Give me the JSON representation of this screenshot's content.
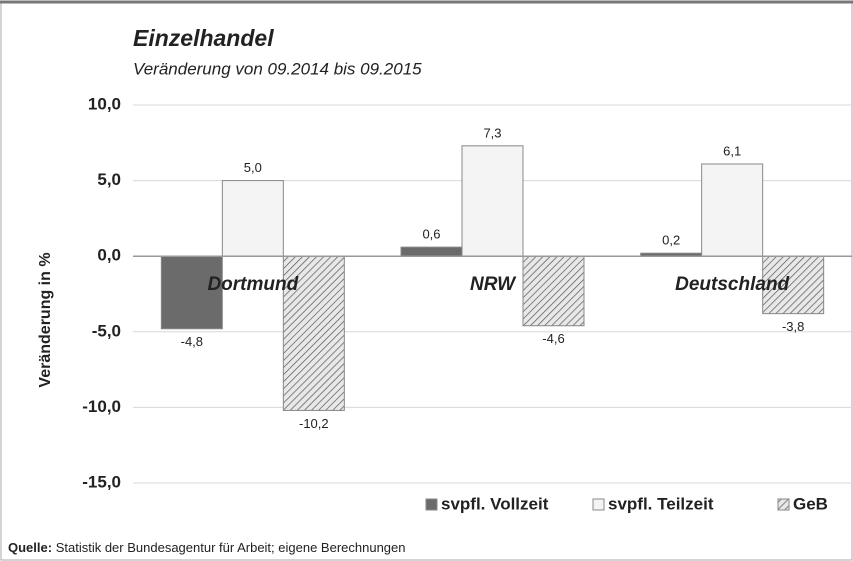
{
  "chart_data": {
    "type": "bar",
    "title": "Einzelhandel",
    "subtitle": "Veränderung von 09.2014 bis 09.2015",
    "y_label": "Veränderung in %",
    "source_label": "Quelle:",
    "source": "Statistik der Bundesagentur für Arbeit; eigene Berechnungen",
    "categories": [
      "Dortmund",
      "NRW",
      "Deutschland"
    ],
    "series": [
      {
        "name": "svpfl. Vollzeit",
        "color": "#6b6b6b",
        "values": [
          -4.8,
          0.6,
          0.2
        ],
        "value_labels": [
          "-4,8",
          "0,6",
          "0,2"
        ]
      },
      {
        "name": "svpfl. Teilzeit",
        "color": "#f4f4f4",
        "values": [
          5.0,
          7.3,
          6.1
        ],
        "value_labels": [
          "5,0",
          "7,3",
          "6,1"
        ]
      },
      {
        "name": "GeB",
        "color": "#e2e2e2",
        "hatch": true,
        "values": [
          -10.2,
          -4.6,
          -3.8
        ],
        "value_labels": [
          "-10,2",
          "-4,6",
          "-3,8"
        ]
      }
    ],
    "ylim": [
      -15,
      10
    ],
    "yticks": [
      {
        "value": 10,
        "label": "10,0"
      },
      {
        "value": 5,
        "label": "5,0"
      },
      {
        "value": 0,
        "label": "0,0"
      },
      {
        "value": -5,
        "label": "-5,0"
      },
      {
        "value": -10,
        "label": "-10,0"
      },
      {
        "value": -15,
        "label": "-15,0"
      }
    ],
    "grid": true,
    "legend": "bottom-right"
  }
}
